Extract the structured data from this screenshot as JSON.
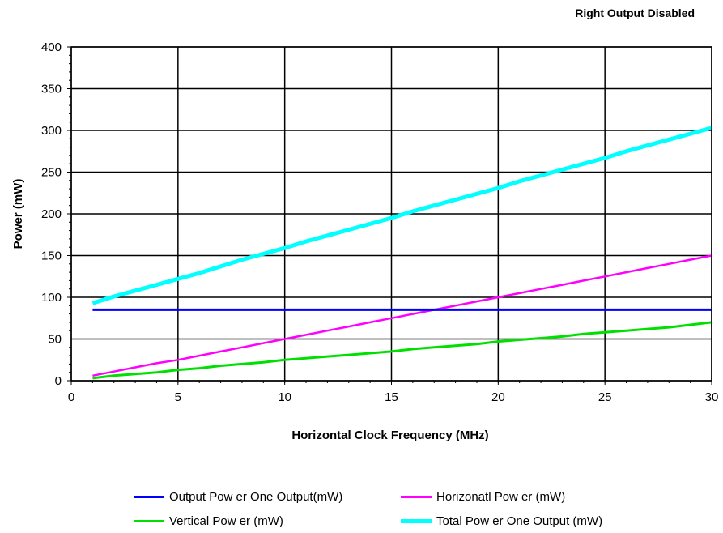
{
  "chart_data": {
    "type": "line",
    "title": "Right Output Disabled",
    "xlabel": "Horizontal Clock Frequency (MHz)",
    "ylabel": "Power (mW)",
    "xlim": [
      0,
      30
    ],
    "ylim": [
      0,
      400
    ],
    "xticks": [
      0,
      5,
      10,
      15,
      20,
      25,
      30
    ],
    "yticks": [
      0,
      50,
      100,
      150,
      200,
      250,
      300,
      350,
      400
    ],
    "grid": true,
    "legend_position": "bottom",
    "x": [
      1,
      2,
      3,
      4,
      5,
      6,
      7,
      8,
      9,
      10,
      11,
      12,
      13,
      14,
      15,
      16,
      17,
      18,
      19,
      20,
      21,
      22,
      23,
      24,
      25,
      26,
      27,
      28,
      29,
      30
    ],
    "series": [
      {
        "name": "Output Pow er One Output(mW)",
        "color": "#0000ff",
        "values": [
          85,
          85,
          85,
          85,
          85,
          85,
          85,
          85,
          85,
          85,
          85,
          85,
          85,
          85,
          85,
          85,
          85,
          85,
          85,
          85,
          85,
          85,
          85,
          85,
          85,
          85,
          85,
          85,
          85,
          85
        ]
      },
      {
        "name": "Horizonatl Pow er (mW)",
        "color": "#ff00ff",
        "values": [
          6,
          11,
          16,
          21,
          25,
          30,
          35,
          40,
          45,
          50,
          55,
          60,
          65,
          70,
          75,
          80,
          85,
          90,
          95,
          100,
          105,
          110,
          115,
          120,
          125,
          130,
          135,
          140,
          145,
          150
        ]
      },
      {
        "name": "Vertical Pow er (mW)",
        "color": "#00e000",
        "values": [
          3,
          6,
          8,
          10,
          13,
          15,
          18,
          20,
          22,
          25,
          27,
          29,
          31,
          33,
          35,
          38,
          40,
          42,
          44,
          47,
          49,
          51,
          53,
          56,
          58,
          60,
          62,
          64,
          67,
          70
        ]
      },
      {
        "name": "Total Pow er One Output (mW)",
        "color": "#00ffff",
        "values": [
          93,
          101,
          108,
          115,
          122,
          129,
          137,
          145,
          152,
          159,
          167,
          174,
          181,
          188,
          195,
          203,
          210,
          217,
          224,
          231,
          239,
          246,
          253,
          260,
          267,
          275,
          282,
          289,
          296,
          303
        ]
      }
    ]
  }
}
